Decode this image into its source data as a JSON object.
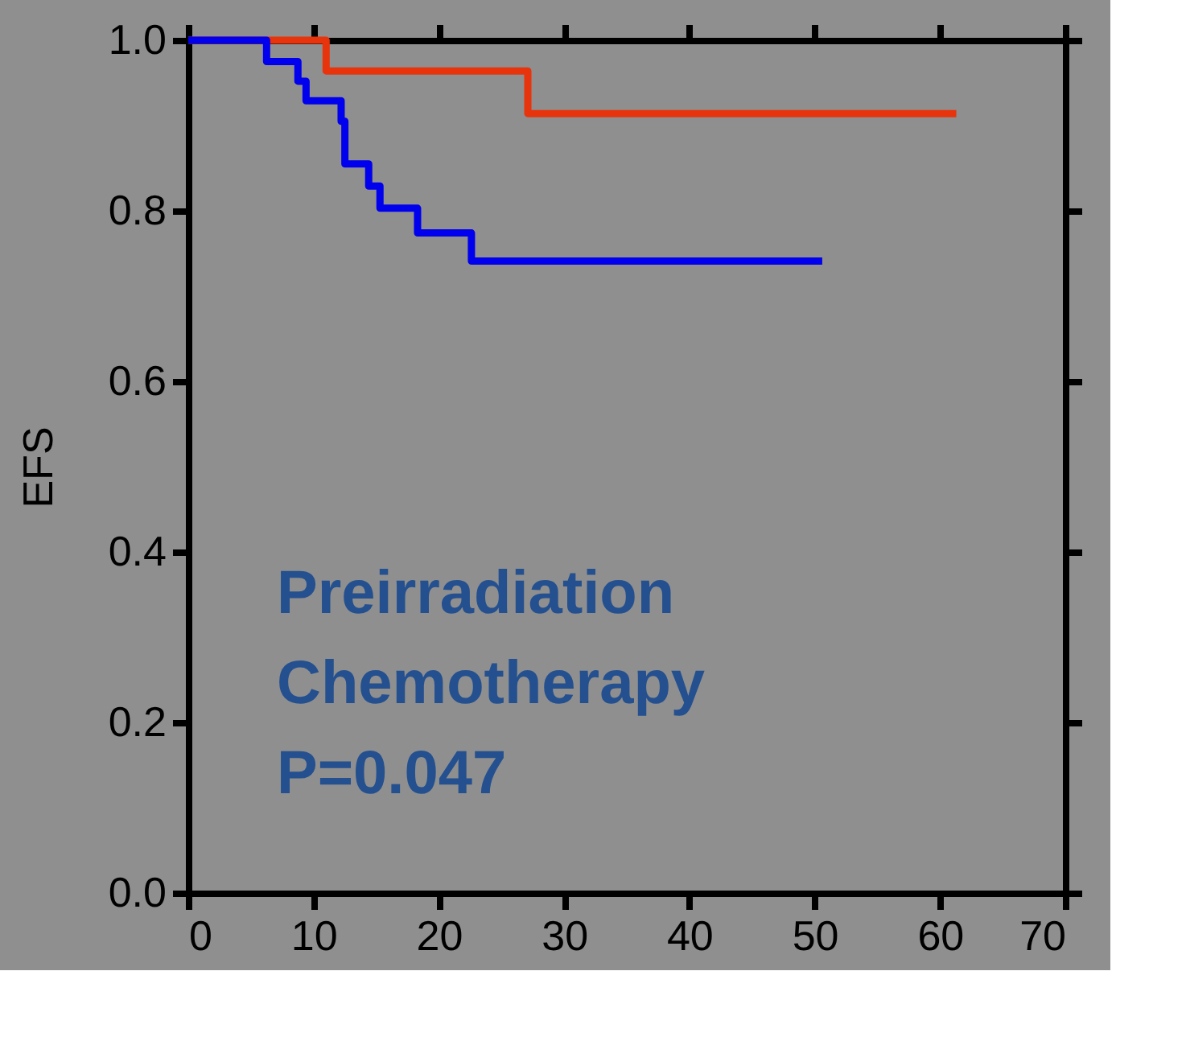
{
  "chart_data": {
    "type": "step",
    "ylabel": "EFS",
    "series": [
      {
        "color": "#e8340c",
        "x": [
          0,
          11.0,
          27.1,
          61.3
        ],
        "values": [
          1.0,
          0.964,
          0.914,
          0.914
        ]
      },
      {
        "color": "#0000ee",
        "x": [
          0,
          6.25,
          8.75,
          9.4,
          12.2,
          12.5,
          14.4,
          15.3,
          18.3,
          22.6,
          50.6
        ],
        "values": [
          1.0,
          0.975,
          0.952,
          0.929,
          0.905,
          0.855,
          0.829,
          0.803,
          0.774,
          0.741,
          0.741
        ]
      }
    ],
    "xlim": [
      0,
      70
    ],
    "xticks": [
      0,
      10,
      20,
      30,
      40,
      50,
      60,
      70
    ],
    "ylim": [
      0,
      1.0
    ],
    "yticks": [
      {
        "value": 0,
        "label": "0.0"
      },
      {
        "value": 0.2,
        "label": "0.2"
      },
      {
        "value": 0.4,
        "label": "0.4"
      },
      {
        "value": 0.6,
        "label": "0.6"
      },
      {
        "value": 0.8,
        "label": "0.8"
      },
      {
        "value": 1.0,
        "label": "1.0"
      }
    ],
    "annotations": [
      "Preirradiation",
      "Chemotherapy",
      "P=0.047"
    ],
    "grid": false,
    "line_style": "solid"
  }
}
